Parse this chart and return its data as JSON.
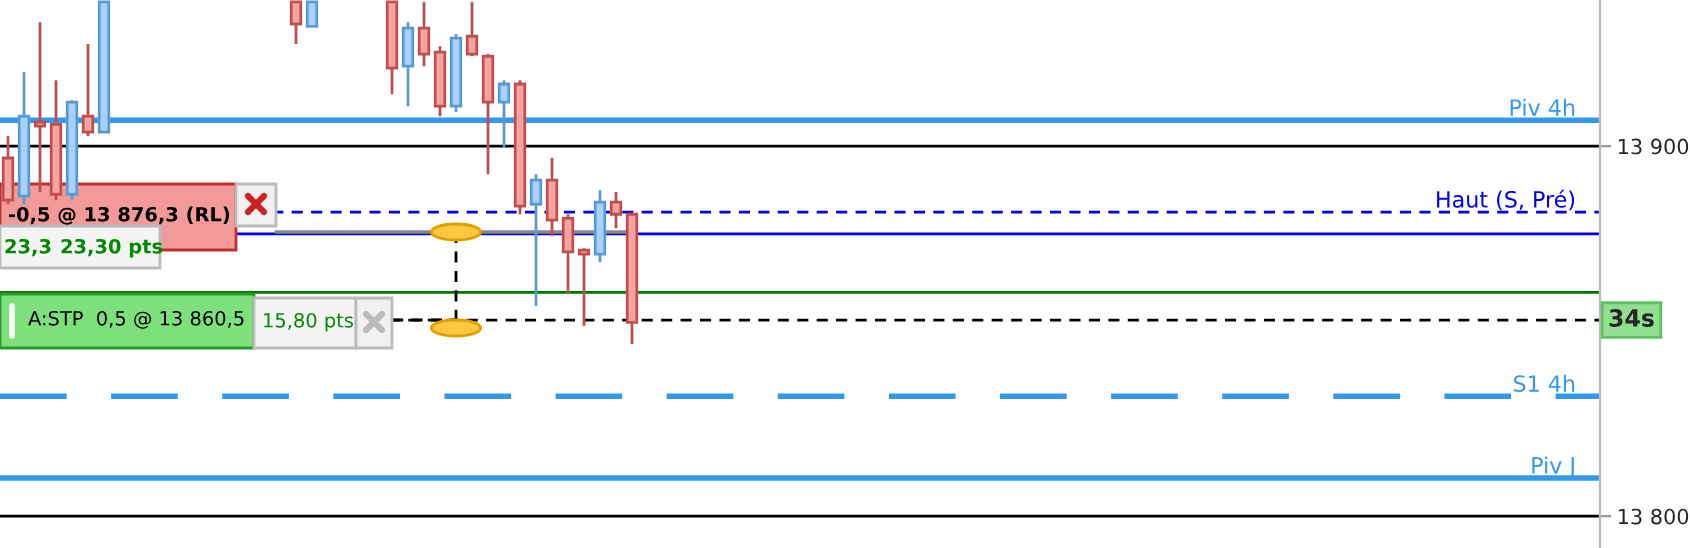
{
  "chart_data": {
    "type": "candlestick",
    "categories": [
      null,
      null,
      null,
      null,
      null,
      null,
      null,
      null,
      null,
      null,
      null,
      null,
      null,
      null,
      null,
      null,
      null,
      null,
      null,
      null,
      null,
      null,
      null,
      null,
      null,
      null,
      null,
      null,
      null,
      null,
      null,
      null,
      null,
      null,
      null,
      null,
      null,
      null,
      null,
      null,
      null,
      null,
      null,
      null,
      null,
      null,
      null,
      null,
      null,
      null,
      null,
      null,
      null,
      null,
      null,
      null,
      null,
      null,
      null,
      null,
      null,
      null,
      null,
      null,
      null,
      null,
      null,
      null,
      null,
      null,
      null,
      null,
      null,
      null,
      null,
      null,
      null,
      null,
      null,
      null,
      null,
      null,
      null,
      null,
      null,
      null,
      null,
      null,
      null,
      null,
      null,
      null,
      null,
      null,
      null,
      null,
      null,
      null,
      null,
      null
    ],
    "ohlc": [
      [
        13896.8,
        13902.7,
        13884.3,
        13885.4
      ],
      [
        13886.5,
        13920.0,
        13884.3,
        13908.1
      ],
      [
        13906.5,
        13933.5,
        13887.6,
        13905.4
      ],
      [
        13905.9,
        13917.8,
        13885.4,
        13887.0
      ],
      [
        13887.0,
        13912.4,
        13885.4,
        13911.9
      ],
      [
        13908.1,
        13927.6,
        13902.7,
        13903.8
      ],
      [
        13903.8,
        13939,
        13903.8,
        13939
      ],
      null,
      null,
      null,
      null,
      null,
      null,
      null,
      null,
      null,
      null,
      null,
      [
        13939,
        13939,
        13927.6,
        13933.0
      ],
      [
        13932.4,
        13939,
        13932.4,
        13939
      ],
      null,
      null,
      null,
      null,
      [
        13939,
        13939,
        13914.0,
        13921.1
      ],
      [
        13921.6,
        13933.5,
        13910.8,
        13931.9
      ],
      [
        13931.9,
        13939,
        13921.6,
        13924.9
      ],
      [
        13925.4,
        13927.0,
        13908.1,
        13910.8
      ],
      [
        13910.8,
        13930.3,
        13909.2,
        13929.2
      ],
      [
        13929.7,
        13939,
        13924.3,
        13924.9
      ],
      [
        13924.3,
        13924.9,
        13892.4,
        13911.9
      ],
      [
        13911.9,
        13917.8,
        13899.5,
        13916.8
      ],
      [
        13916.8,
        13917.8,
        13881.6,
        13883.8
      ],
      [
        13884.3,
        13892.4,
        13856.8,
        13890.8
      ],
      [
        13890.8,
        13896.8,
        13875.7,
        13880.0
      ],
      [
        13880.5,
        13881.6,
        13860.0,
        13871.4
      ],
      [
        13871.9,
        13872.4,
        13851.4,
        13870.8
      ],
      [
        13870.8,
        13888.1,
        13868.6,
        13884.9
      ],
      [
        13884.9,
        13887.6,
        13877.8,
        13881.6
      ],
      [
        13881.6,
        13881.6,
        13846.5,
        13852.4
      ],
      null,
      null,
      null,
      null,
      null,
      null,
      null,
      null,
      null,
      null,
      null,
      null,
      null,
      null,
      null,
      null,
      null,
      null,
      null,
      null,
      null,
      null,
      null,
      null,
      null,
      null,
      null,
      null,
      null,
      null,
      null,
      null,
      null,
      null,
      null,
      null,
      null,
      null,
      null,
      null,
      null,
      null,
      null,
      null,
      null,
      null,
      null,
      null,
      null,
      null,
      null,
      null,
      null,
      null,
      null,
      null,
      null,
      null,
      null,
      null
    ],
    "ylim": [
      13791.4,
      13939.5
    ],
    "yticks": [
      {
        "value": 13900,
        "label": "13 900"
      },
      {
        "value": 13800,
        "label": "13 800"
      }
    ],
    "grid": "y",
    "tick_labels": "y",
    "ref_lines": [
      {
        "axis": "y",
        "value": 13907.0,
        "label": "Piv 4h",
        "color": "#3399ee",
        "line_style": "solid"
      },
      {
        "axis": "y",
        "value": 13882.2,
        "label": "Haut (S, Pré)",
        "color": "#0000ee",
        "line_style": "dashed"
      },
      {
        "axis": "y",
        "value": 13876.3,
        "label": null,
        "color": "#0000ee",
        "line_style": "solid"
      },
      {
        "axis": "y",
        "value": 13860.5,
        "label": null,
        "color": "#007700",
        "line_style": "solid"
      },
      {
        "axis": "y",
        "value": 13853.0,
        "label": null,
        "color": "#000000",
        "line_style": "dashed"
      },
      {
        "axis": "y",
        "value": 13832.4,
        "label": "S1 4h",
        "color": "#3399ee",
        "line_style": "dashed"
      },
      {
        "axis": "y",
        "value": 13810.3,
        "label": "Piv J",
        "color": "#3399ee",
        "line_style": "solid"
      }
    ],
    "annotations": [
      "-0,5 @ 13 876,3 (RL)",
      "23,3",
      "23,30 pts",
      "A:STP  0,5 @ 13 860,5",
      "15,80 pts",
      {
        "text": "34s",
        "y": 13853.0
      }
    ]
  }
}
